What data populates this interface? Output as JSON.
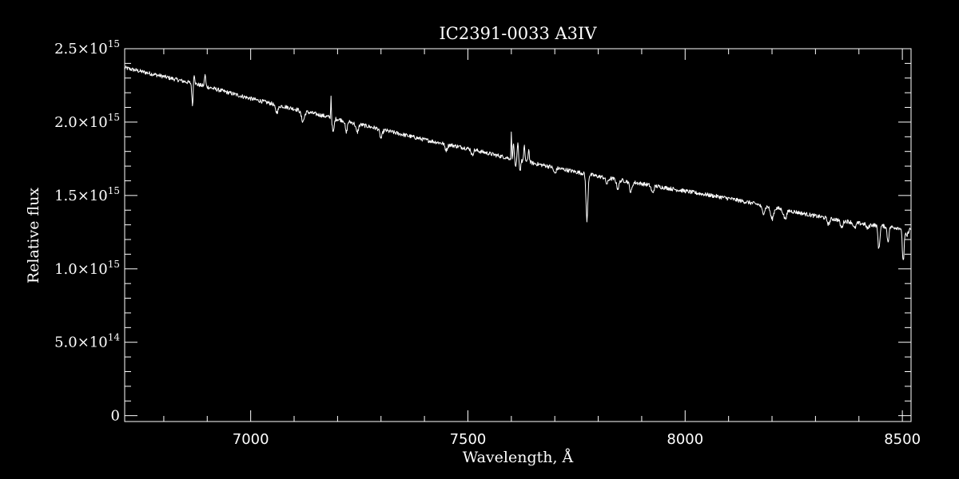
{
  "colors": {
    "background": "#000000",
    "foreground": "#ffffff"
  },
  "chart_data": {
    "type": "line",
    "title": "IC2391-0033   A3IV",
    "xlabel": "Wavelength, Å",
    "ylabel": "Relative flux",
    "xlim": [
      6710,
      8520
    ],
    "ylim": [
      -40000000000000.0,
      2500000000000000.0
    ],
    "grid": false,
    "legend": "none",
    "x_ticks": {
      "major": [
        7000,
        7500,
        8000,
        8500
      ],
      "major_labels": [
        "7000",
        "7500",
        "8000",
        "8500"
      ],
      "minor_step": 100
    },
    "y_ticks": {
      "major": [
        0,
        500000000000000.0,
        1000000000000000.0,
        1500000000000000.0,
        2000000000000000.0,
        2500000000000000.0
      ],
      "labels": [
        {
          "mantissa": "0",
          "exponent": ""
        },
        {
          "mantissa": "5.0×10",
          "exponent": "14"
        },
        {
          "mantissa": "1.0×10",
          "exponent": "15"
        },
        {
          "mantissa": "1.5×10",
          "exponent": "15"
        },
        {
          "mantissa": "2.0×10",
          "exponent": "15"
        },
        {
          "mantissa": "2.5×10",
          "exponent": "15"
        }
      ],
      "minor_step": 100000000000000.0
    },
    "series": [
      {
        "values_unit": "relative flux",
        "continuum_points": [
          [
            6710,
            2370000000000000.0
          ],
          [
            6800,
            2310000000000000.0
          ],
          [
            6900,
            2240000000000000.0
          ],
          [
            7000,
            2160000000000000.0
          ],
          [
            7100,
            2090000000000000.0
          ],
          [
            7200,
            2020000000000000.0
          ],
          [
            7300,
            1950000000000000.0
          ],
          [
            7400,
            1880000000000000.0
          ],
          [
            7500,
            1820000000000000.0
          ],
          [
            7600,
            1750000000000000.0
          ],
          [
            7700,
            1690000000000000.0
          ],
          [
            7800,
            1630000000000000.0
          ],
          [
            7900,
            1580000000000000.0
          ],
          [
            8000,
            1530000000000000.0
          ],
          [
            8100,
            1480000000000000.0
          ],
          [
            8200,
            1420000000000000.0
          ],
          [
            8300,
            1360000000000000.0
          ],
          [
            8400,
            1310000000000000.0
          ],
          [
            8520,
            1270000000000000.0
          ]
        ],
        "features": [
          {
            "x": 6866,
            "depth": 150000000000000.0,
            "width": 2
          },
          {
            "x": 6870,
            "depth": -70000000000000.0,
            "width": 2
          },
          {
            "x": 6895,
            "depth": -80000000000000.0,
            "width": 2
          },
          {
            "x": 7060,
            "depth": 50000000000000.0,
            "width": 5
          },
          {
            "x": 7120,
            "depth": 70000000000000.0,
            "width": 5
          },
          {
            "x": 7185,
            "depth": -160000000000000.0,
            "width": 1
          },
          {
            "x": 7190,
            "depth": 100000000000000.0,
            "width": 3
          },
          {
            "x": 7220,
            "depth": 80000000000000.0,
            "width": 3
          },
          {
            "x": 7245,
            "depth": 60000000000000.0,
            "width": 4
          },
          {
            "x": 7300,
            "depth": 60000000000000.0,
            "width": 4
          },
          {
            "x": 7450,
            "depth": 40000000000000.0,
            "width": 4
          },
          {
            "x": 7510,
            "depth": 40000000000000.0,
            "width": 3
          },
          {
            "x": 7600,
            "depth": -190000000000000.0,
            "width": 1
          },
          {
            "x": 7605,
            "depth": -100000000000000.0,
            "width": 2
          },
          {
            "x": 7610,
            "depth": 60000000000000.0,
            "width": 2
          },
          {
            "x": 7615,
            "depth": -110000000000000.0,
            "width": 2
          },
          {
            "x": 7620,
            "depth": 70000000000000.0,
            "width": 2
          },
          {
            "x": 7630,
            "depth": -100000000000000.0,
            "width": 2
          },
          {
            "x": 7640,
            "depth": -90000000000000.0,
            "width": 2
          },
          {
            "x": 7700,
            "depth": 40000000000000.0,
            "width": 4
          },
          {
            "x": 7774,
            "depth": 320000000000000.0,
            "width": 3
          },
          {
            "x": 7820,
            "depth": 40000000000000.0,
            "width": 4
          },
          {
            "x": 7845,
            "depth": 60000000000000.0,
            "width": 4
          },
          {
            "x": 7875,
            "depth": 70000000000000.0,
            "width": 4
          },
          {
            "x": 7925,
            "depth": 50000000000000.0,
            "width": 4
          },
          {
            "x": 8180,
            "depth": 50000000000000.0,
            "width": 5
          },
          {
            "x": 8200,
            "depth": 80000000000000.0,
            "width": 5
          },
          {
            "x": 8230,
            "depth": 60000000000000.0,
            "width": 5
          },
          {
            "x": 8330,
            "depth": 40000000000000.0,
            "width": 4
          },
          {
            "x": 8360,
            "depth": 50000000000000.0,
            "width": 4
          },
          {
            "x": 8390,
            "depth": 40000000000000.0,
            "width": 4
          },
          {
            "x": 8420,
            "depth": 30000000000000.0,
            "width": 4
          },
          {
            "x": 8446,
            "depth": 160000000000000.0,
            "width": 3
          },
          {
            "x": 8467,
            "depth": 100000000000000.0,
            "width": 3
          },
          {
            "x": 8502,
            "depth": 220000000000000.0,
            "width": 3
          },
          {
            "x": 8510,
            "depth": 50000000000000.0,
            "width": 4
          }
        ],
        "noise_amplitude": 14000000000000.0,
        "sample_step": 1
      }
    ]
  }
}
